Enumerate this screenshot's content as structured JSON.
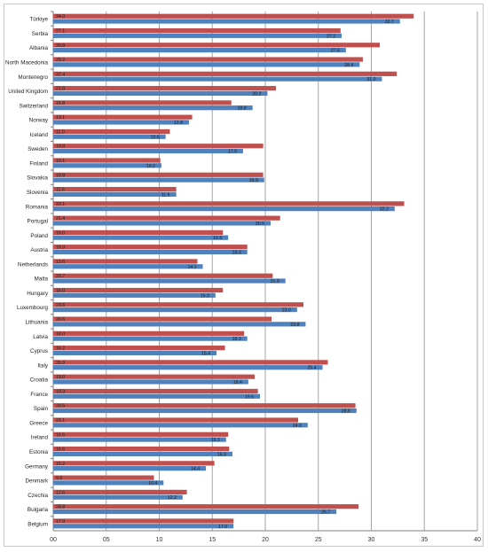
{
  "chart_data": {
    "type": "bar",
    "orientation": "horizontal",
    "title": "",
    "xlabel": "",
    "ylabel": "",
    "xlim": [
      0,
      40
    ],
    "x_ticks": [
      "00",
      "05",
      "10",
      "15",
      "20",
      "25",
      "30",
      "35",
      "40"
    ],
    "grid": true,
    "legend": "none",
    "categories": [
      "Türkiye",
      "Serbia",
      "Albania",
      "North Macedonia",
      "Montenegro",
      "United Kingdom",
      "Switzerland",
      "Norway",
      "Iceland",
      "Sweden",
      "Finland",
      "Slovakia",
      "Slovenia",
      "Romania",
      "Portugal",
      "Poland",
      "Austria",
      "Netherlands",
      "Malta",
      "Hungary",
      "Luxembourg",
      "Lithuania",
      "Latvia",
      "Cyprus",
      "Italy",
      "Croatia",
      "France",
      "Spain",
      "Greece",
      "Ireland",
      "Estonia",
      "Germany",
      "Denmark",
      "Czechia",
      "Bulgaria",
      "Belgium"
    ],
    "series": [
      {
        "color": "#c0504d",
        "values": [
          34.0,
          27.1,
          30.8,
          29.2,
          32.4,
          21.0,
          16.8,
          13.1,
          11.0,
          19.8,
          10.1,
          19.8,
          11.6,
          33.1,
          21.4,
          16.0,
          18.3,
          13.6,
          20.7,
          16.0,
          23.6,
          20.6,
          18.0,
          16.2,
          25.9,
          19.0,
          19.3,
          28.5,
          23.1,
          16.5,
          16.6,
          15.2,
          9.5,
          12.6,
          28.8,
          17.0
        ],
        "labels": [
          "34.0",
          "27.1",
          "30.8",
          "29.2",
          "32.4",
          "21.0",
          "16.8",
          "13.1",
          "11.0",
          "19.8",
          "10.1",
          "19.8",
          "11.6",
          "33.1",
          "21.4",
          "16.0",
          "18.3",
          "13.6",
          "20.7",
          "16.0",
          "23.6",
          "20.6",
          "18.0",
          "16.2",
          "25.9",
          "19.0",
          "19.3",
          "28.5",
          "23.1",
          "16.5",
          "16.6",
          "15.2",
          "9.5",
          "12.6",
          "28.8",
          "17.0"
        ]
      },
      {
        "color": "#4f81bd",
        "values": [
          32.7,
          27.2,
          27.6,
          28.9,
          31.0,
          20.2,
          18.8,
          12.8,
          10.6,
          17.9,
          10.2,
          19.9,
          11.6,
          32.2,
          20.5,
          16.5,
          18.3,
          14.1,
          21.9,
          15.3,
          23.0,
          23.8,
          18.3,
          15.4,
          25.4,
          18.4,
          19.5,
          28.6,
          24.0,
          16.3,
          16.9,
          14.4,
          10.4,
          12.2,
          26.7,
          17.0
        ],
        "labels": [
          "32.7",
          "27.2",
          "27.6",
          "28.9",
          "31.0",
          "20.2",
          "18.8",
          "12.8",
          "10.6",
          "17.9",
          "10.2",
          "19.9",
          "11.6",
          "32.2",
          "20.5",
          "16.5",
          "18.3",
          "14.1",
          "21.9",
          "15.3",
          "23.0",
          "23.8",
          "18.3",
          "15.4",
          "25.4",
          "18.4",
          "19.5",
          "28.6",
          "24.0",
          "16.3",
          "16.9",
          "14.4",
          "10.4",
          "12.2",
          "26.7",
          "17.0"
        ]
      }
    ]
  }
}
